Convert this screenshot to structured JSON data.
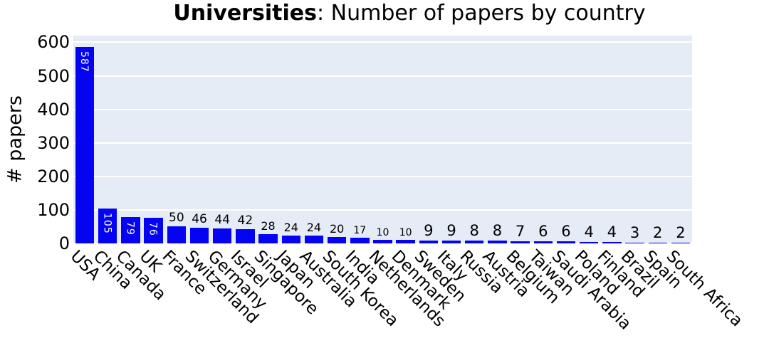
{
  "title": {
    "bold": "Universities",
    "rest": ": Number of papers by country"
  },
  "chart_data": {
    "type": "bar",
    "title": "Universities: Number of papers by country",
    "xlabel": "",
    "ylabel": "# papers",
    "categories": [
      "USA",
      "China",
      "Canada",
      "UK",
      "France",
      "Switzerland",
      "Germany",
      "Israel",
      "Singapore",
      "Japan",
      "Australia",
      "South Korea",
      "India",
      "Netherlands",
      "Denmark",
      "Sweden",
      "Italy",
      "Russia",
      "Austria",
      "Belgium",
      "Taiwan",
      "Saudi Arabia",
      "Poland",
      "Finland",
      "Brazil",
      "Spain",
      "South Africa"
    ],
    "values": [
      587,
      105,
      79,
      76,
      50,
      46,
      44,
      42,
      28,
      24,
      24,
      20,
      17,
      10,
      10,
      9,
      9,
      8,
      8,
      7,
      6,
      6,
      4,
      4,
      3,
      2,
      2
    ],
    "ylim": [
      0,
      620
    ],
    "yticks": [
      0,
      100,
      200,
      300,
      400,
      500,
      600
    ],
    "grid": true,
    "legend": "none",
    "bar_color": "#0404f2",
    "plot_bg": "#e5ecf6",
    "grid_color": "#ffffff",
    "inside_label_color": "#ffffff",
    "outside_label_color": "#000000",
    "tick_angle_deg": 45
  }
}
